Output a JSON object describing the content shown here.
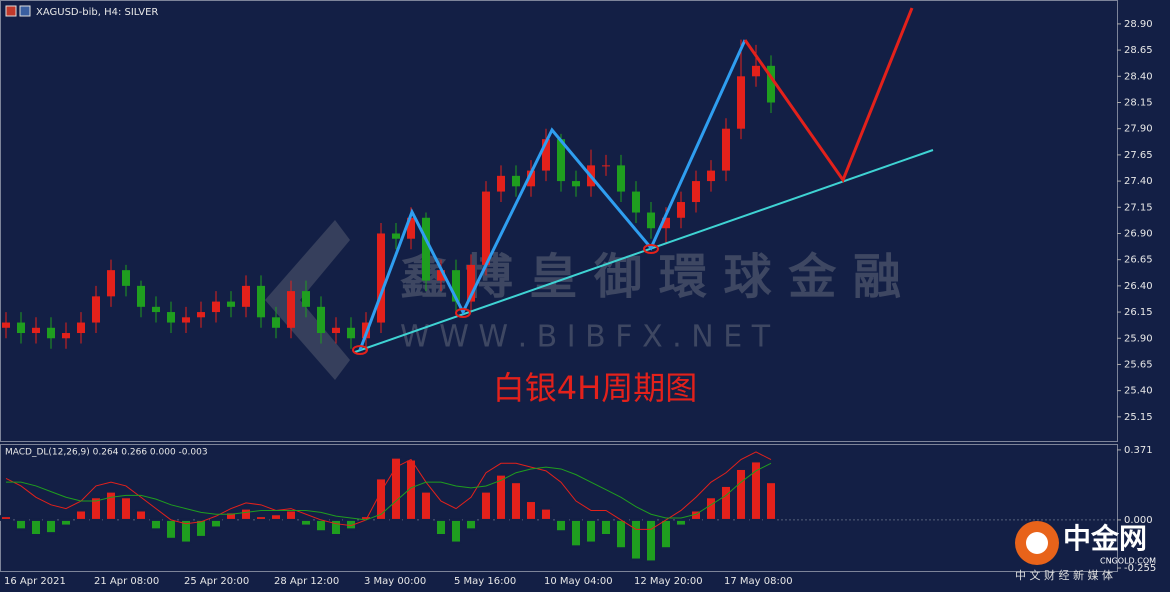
{
  "header": {
    "symbol": "XAGUSD-bib, H4:  SILVER"
  },
  "annotation_title": "白银4H周期图",
  "watermark": {
    "name": "鑫 博 皇 御 環 球 金 融",
    "url": "W W W . B I B F X . N E T"
  },
  "logo": {
    "name": "中金网",
    "domain": "CNGOLD.COM",
    "tagline": "中 文 财 经 新 媒 体"
  },
  "chart_data": [
    {
      "type": "candlestick",
      "up_color": "#e3211b",
      "down_color": "#1f9e1f",
      "xtick_labels": [
        "16 Apr 2021",
        "21 Apr 08:00",
        "25 Apr 20:00",
        "28 Apr 12:00",
        "3 May 00:00",
        "5 May 16:00",
        "10 May 04:00",
        "12 May 20:00",
        "17 May 08:00"
      ],
      "open": [
        26.0,
        26.05,
        25.95,
        26.0,
        25.9,
        25.95,
        26.05,
        26.3,
        26.55,
        26.4,
        26.2,
        26.15,
        26.05,
        26.1,
        26.15,
        26.25,
        26.2,
        26.4,
        26.1,
        26.0,
        26.35,
        26.2,
        25.95,
        26.0,
        25.9,
        26.05,
        26.9,
        26.85,
        27.05,
        26.45,
        26.55,
        26.25,
        26.6,
        27.3,
        27.45,
        27.35,
        27.5,
        27.8,
        27.4,
        27.35,
        27.55,
        27.55,
        27.3,
        27.1,
        26.95,
        27.05,
        27.2,
        27.4,
        27.5,
        27.9,
        28.4,
        28.5
      ],
      "high": [
        26.15,
        26.15,
        26.1,
        26.1,
        26.05,
        26.15,
        26.4,
        26.65,
        26.6,
        26.45,
        26.3,
        26.25,
        26.2,
        26.25,
        26.35,
        26.35,
        26.5,
        26.5,
        26.2,
        26.45,
        26.45,
        26.3,
        26.1,
        26.1,
        26.15,
        27.0,
        27.0,
        27.15,
        27.1,
        26.65,
        26.65,
        26.7,
        27.4,
        27.55,
        27.55,
        27.6,
        27.9,
        27.85,
        27.5,
        27.7,
        27.65,
        27.65,
        27.4,
        27.2,
        27.15,
        27.3,
        27.5,
        27.6,
        28.0,
        28.75,
        28.7,
        28.6
      ],
      "low": [
        25.9,
        25.85,
        25.85,
        25.8,
        25.8,
        25.85,
        25.95,
        26.2,
        26.3,
        26.1,
        26.05,
        25.95,
        25.95,
        26.0,
        26.05,
        26.1,
        26.1,
        26.0,
        25.9,
        25.9,
        26.1,
        25.85,
        25.85,
        25.8,
        25.78,
        25.95,
        26.75,
        26.75,
        26.35,
        26.35,
        26.15,
        26.15,
        26.5,
        27.2,
        27.25,
        27.25,
        27.4,
        27.3,
        27.25,
        27.25,
        27.45,
        27.2,
        27.0,
        26.85,
        26.8,
        26.95,
        27.1,
        27.3,
        27.4,
        27.8,
        28.3,
        28.05
      ],
      "close": [
        26.05,
        25.95,
        26.0,
        25.9,
        25.95,
        26.05,
        26.3,
        26.55,
        26.4,
        26.2,
        26.15,
        26.05,
        26.1,
        26.15,
        26.25,
        26.2,
        26.4,
        26.1,
        26.0,
        26.35,
        26.2,
        25.95,
        26.0,
        25.9,
        26.05,
        26.9,
        26.85,
        27.05,
        26.45,
        26.55,
        26.25,
        26.6,
        27.3,
        27.45,
        27.35,
        27.5,
        27.8,
        27.4,
        27.35,
        27.55,
        27.55,
        27.3,
        27.1,
        26.95,
        27.05,
        27.2,
        27.4,
        27.5,
        27.9,
        28.4,
        28.5,
        28.15
      ],
      "ylim": [
        24.91,
        29.09
      ],
      "yticks": [
        {
          "value": 28.9,
          "label": "28.90"
        },
        {
          "value": 28.65,
          "label": "28.65"
        },
        {
          "value": 28.4,
          "label": "28.40"
        },
        {
          "value": 28.15,
          "label": "28.15"
        },
        {
          "value": 27.9,
          "label": "27.90"
        },
        {
          "value": 27.65,
          "label": "27.65"
        },
        {
          "value": 27.4,
          "label": "27.40"
        },
        {
          "value": 27.15,
          "label": "27.15"
        },
        {
          "value": 26.9,
          "label": "26.90"
        },
        {
          "value": 26.65,
          "label": "26.65"
        },
        {
          "value": 26.4,
          "label": "26.40"
        },
        {
          "value": 26.15,
          "label": "26.15"
        },
        {
          "value": 25.9,
          "label": "25.90"
        },
        {
          "value": 25.65,
          "label": "25.65"
        },
        {
          "value": 25.4,
          "label": "25.40"
        },
        {
          "value": 25.15,
          "label": "25.15"
        }
      ]
    },
    {
      "type": "macd",
      "title": "MACD_DL(12,26,9) 0.264 0.266 0.000 -0.003",
      "pos_color": "#e3211b",
      "neg_color": "#1f9e1f",
      "values": [
        0.02,
        -0.05,
        -0.08,
        -0.07,
        -0.03,
        0.05,
        0.12,
        0.15,
        0.12,
        0.05,
        -0.05,
        -0.1,
        -0.12,
        -0.09,
        -0.04,
        0.04,
        0.06,
        0.02,
        0.03,
        0.05,
        -0.03,
        -0.06,
        -0.08,
        -0.05,
        0.02,
        0.22,
        0.33,
        0.32,
        0.15,
        -0.08,
        -0.12,
        -0.05,
        0.15,
        0.24,
        0.2,
        0.1,
        0.06,
        -0.06,
        -0.14,
        -0.12,
        -0.08,
        -0.15,
        -0.21,
        -0.22,
        -0.15,
        -0.03,
        0.05,
        0.12,
        0.18,
        0.27,
        0.31,
        0.2
      ],
      "series": [
        {
          "color": "#e3211b",
          "values": [
            0.22,
            0.18,
            0.12,
            0.08,
            0.06,
            0.1,
            0.18,
            0.2,
            0.18,
            0.12,
            0.06,
            0.0,
            -0.02,
            -0.01,
            0.02,
            0.06,
            0.09,
            0.08,
            0.05,
            0.06,
            0.03,
            0.0,
            -0.02,
            -0.03,
            0.0,
            0.15,
            0.28,
            0.32,
            0.2,
            0.1,
            0.06,
            0.12,
            0.25,
            0.3,
            0.3,
            0.28,
            0.26,
            0.2,
            0.1,
            0.05,
            0.05,
            0.0,
            -0.05,
            -0.05,
            0.0,
            0.05,
            0.12,
            0.2,
            0.25,
            0.32,
            0.36,
            0.32
          ]
        },
        {
          "color": "#1f9e1f",
          "values": [
            0.2,
            0.2,
            0.18,
            0.15,
            0.12,
            0.1,
            0.1,
            0.12,
            0.13,
            0.13,
            0.11,
            0.08,
            0.06,
            0.04,
            0.03,
            0.03,
            0.04,
            0.05,
            0.05,
            0.05,
            0.05,
            0.04,
            0.02,
            0.01,
            0.0,
            0.03,
            0.1,
            0.17,
            0.2,
            0.2,
            0.18,
            0.17,
            0.18,
            0.21,
            0.25,
            0.27,
            0.28,
            0.27,
            0.24,
            0.2,
            0.16,
            0.12,
            0.07,
            0.03,
            0.01,
            0.01,
            0.03,
            0.08,
            0.13,
            0.2,
            0.26,
            0.3
          ]
        }
      ],
      "ylim": [
        -0.276,
        0.397
      ],
      "yticks": [
        0.371,
        {
          "value": 0,
          "label": "0.000"
        },
        -0.255
      ]
    }
  ]
}
